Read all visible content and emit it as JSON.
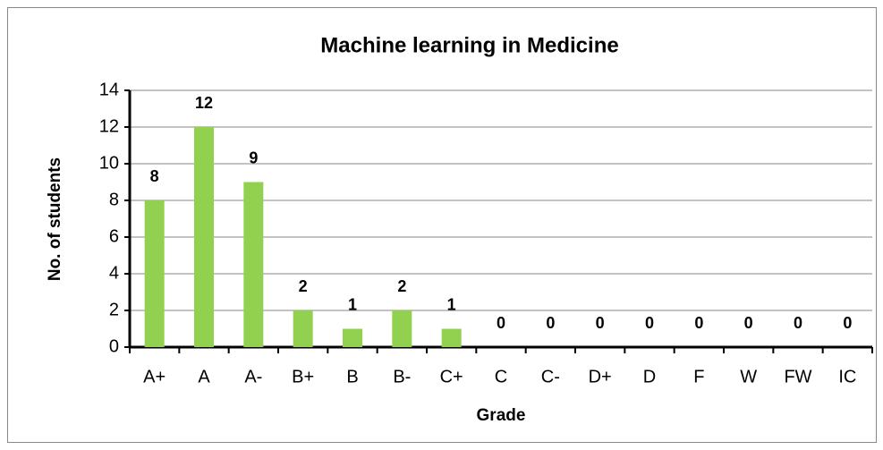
{
  "chart_data": {
    "type": "bar",
    "title": "Machine learning in Medicine",
    "x_label": "Grade",
    "y_label": "No. of students",
    "categories": [
      "A+",
      "A",
      "A-",
      "B+",
      "B",
      "B-",
      "C+",
      "C",
      "C-",
      "D+",
      "D",
      "F",
      "W",
      "FW",
      "IC"
    ],
    "values": [
      8,
      12,
      9,
      2,
      1,
      2,
      1,
      0,
      0,
      0,
      0,
      0,
      0,
      0,
      0
    ],
    "color": "#92d050",
    "ylim": [
      0,
      14
    ],
    "yticks": [
      0,
      2,
      4,
      6,
      8,
      10,
      12,
      14
    ],
    "grid": true
  }
}
